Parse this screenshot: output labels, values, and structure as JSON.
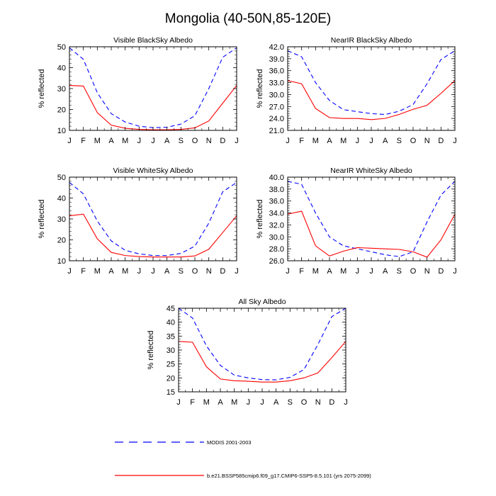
{
  "title": "Mongolia (40-50N,85-120E)",
  "legend": [
    {
      "label": "MODIS 2001-2003",
      "color": "#0000ff",
      "dash": "dashed"
    },
    {
      "label": "b.e21.BSSP585cmip6.f09_g17.CMIP6-SSP5-8.5.101 (yrs 2075-2099)",
      "color": "#ff0000",
      "dash": "solid"
    }
  ],
  "chart_data": [
    {
      "type": "line",
      "title": "Visible BlackSky Albedo",
      "ylabel": "% reflected",
      "categories": [
        "J",
        "F",
        "M",
        "A",
        "M",
        "J",
        "J",
        "A",
        "S",
        "O",
        "N",
        "D",
        "J"
      ],
      "ylim": [
        10,
        50
      ],
      "yticks": [
        "10",
        "20",
        "30",
        "40",
        "50"
      ],
      "series": [
        {
          "name": "MODIS 2001-2003",
          "values": [
            49.5,
            44,
            28,
            18,
            14,
            12,
            11.3,
            11.5,
            13,
            17,
            30,
            45,
            49.5
          ]
        },
        {
          "name": "b.e21.BSSP585cmip6.f09_g17.CMIP6-SSP5-8.5.101 (yrs 2075-2099)",
          "values": [
            31.5,
            31.2,
            18.5,
            12.5,
            11,
            10.5,
            10.3,
            10.3,
            10.5,
            11.2,
            14.5,
            23,
            31.5
          ]
        }
      ]
    },
    {
      "type": "line",
      "title": "NearIR BlackSky Albedo",
      "ylabel": "% reflected",
      "categories": [
        "J",
        "F",
        "M",
        "A",
        "M",
        "J",
        "J",
        "A",
        "S",
        "O",
        "N",
        "D",
        "J"
      ],
      "ylim": [
        21,
        42
      ],
      "yticks": [
        "21.0",
        "24.0",
        "27.0",
        "30.0",
        "33.0",
        "36.0",
        "39.0",
        "42.0"
      ],
      "series": [
        {
          "name": "MODIS 2001-2003",
          "values": [
            41,
            39.5,
            33,
            28.5,
            26.2,
            25.7,
            25.2,
            25,
            25.8,
            27.5,
            32.7,
            38.8,
            41
          ]
        },
        {
          "name": "b.e21.BSSP585cmip6.f09_g17.CMIP6-SSP5-8.5.101 (yrs 2075-2099)",
          "values": [
            33.5,
            32.7,
            26.5,
            24.2,
            24,
            24,
            23.7,
            24,
            25,
            26.3,
            27.3,
            30.3,
            33.5
          ]
        }
      ]
    },
    {
      "type": "line",
      "title": "Visible WhiteSky Albedo",
      "ylabel": "% reflected",
      "categories": [
        "J",
        "F",
        "M",
        "A",
        "M",
        "J",
        "J",
        "A",
        "S",
        "O",
        "N",
        "D",
        "J"
      ],
      "ylim": [
        10,
        50
      ],
      "yticks": [
        "10",
        "20",
        "30",
        "40",
        "50"
      ],
      "series": [
        {
          "name": "MODIS 2001-2003",
          "values": [
            47.5,
            42,
            29,
            19.5,
            15,
            13.3,
            12.5,
            12.5,
            13.5,
            17,
            28,
            43,
            47.5
          ]
        },
        {
          "name": "b.e21.BSSP585cmip6.f09_g17.CMIP6-SSP5-8.5.101 (yrs 2075-2099)",
          "values": [
            31.5,
            32.3,
            20.5,
            14,
            12.5,
            12,
            11.8,
            11.8,
            11.8,
            12.3,
            15.5,
            23.5,
            31.5
          ]
        }
      ]
    },
    {
      "type": "line",
      "title": "NearIR WhiteSky Albedo",
      "ylabel": "% reflected",
      "categories": [
        "J",
        "F",
        "M",
        "A",
        "M",
        "J",
        "J",
        "A",
        "S",
        "O",
        "N",
        "D",
        "J"
      ],
      "ylim": [
        26,
        40
      ],
      "yticks": [
        "26.0",
        "28.0",
        "30.0",
        "32.0",
        "34.0",
        "36.0",
        "38.0",
        "40.0"
      ],
      "series": [
        {
          "name": "MODIS 2001-2003",
          "values": [
            39.3,
            38.8,
            34,
            30,
            28.5,
            28,
            27.5,
            27,
            26.7,
            27.5,
            32.5,
            37,
            39.3
          ]
        },
        {
          "name": "b.e21.BSSP585cmip6.f09_g17.CMIP6-SSP5-8.5.101 (yrs 2075-2099)",
          "values": [
            33.8,
            34.3,
            28.5,
            26.8,
            27.6,
            28.2,
            28.1,
            28,
            27.9,
            27.5,
            26.6,
            29.5,
            33.8
          ]
        }
      ]
    },
    {
      "type": "line",
      "title": "All Sky Albedo",
      "ylabel": "% reflected",
      "categories": [
        "J",
        "F",
        "M",
        "A",
        "M",
        "J",
        "J",
        "A",
        "S",
        "O",
        "N",
        "D",
        "J"
      ],
      "ylim": [
        15,
        45
      ],
      "yticks": [
        "15",
        "20",
        "25",
        "30",
        "35",
        "40",
        "45"
      ],
      "series": [
        {
          "name": "MODIS 2001-2003",
          "values": [
            45,
            41.5,
            31.5,
            24.5,
            21,
            20,
            19.4,
            19.3,
            20.2,
            23,
            32,
            42,
            45
          ]
        },
        {
          "name": "b.e21.BSSP585cmip6.f09_g17.CMIP6-SSP5-8.5.101 (yrs 2075-2099)",
          "values": [
            33.1,
            32.8,
            24,
            19.6,
            19,
            18.8,
            18.5,
            18.5,
            19,
            20,
            21.8,
            27.3,
            33.1
          ]
        }
      ]
    }
  ]
}
